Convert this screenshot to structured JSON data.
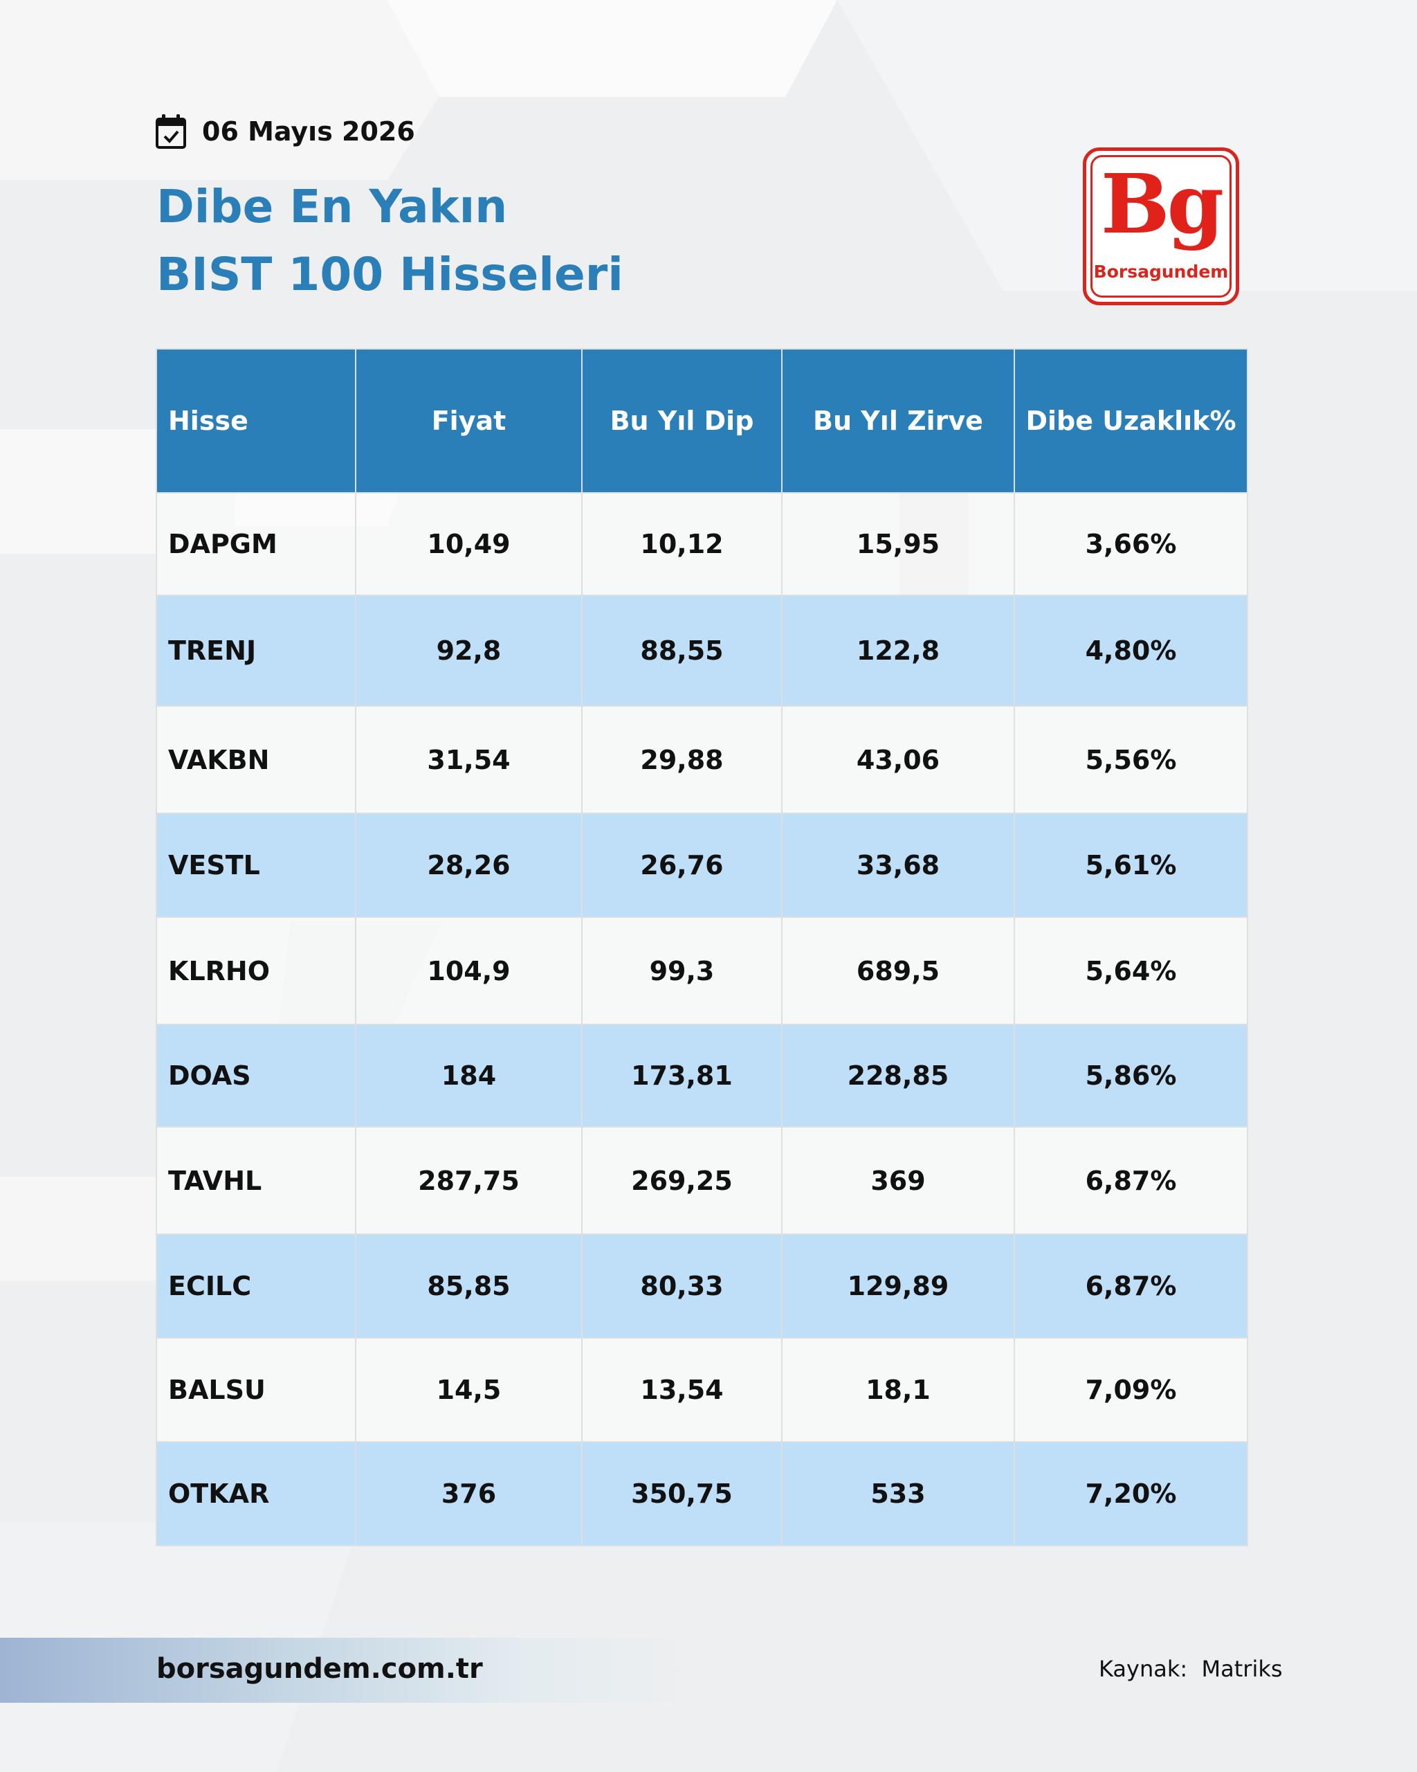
{
  "date": "06 Mayıs 2026",
  "title": {
    "line1": "Dibe En Yakın",
    "line2": "BIST 100 Hisseleri"
  },
  "logo": {
    "mark": "Bg",
    "name": "Borsagundem"
  },
  "table": {
    "headers": [
      "Hisse",
      "Fiyat",
      "Bu Yıl Dip",
      "Bu Yıl Zirve",
      "Dibe Uzaklık%"
    ],
    "rows": [
      [
        "DAPGM",
        "10,49",
        "10,12",
        "15,95",
        "3,66%"
      ],
      [
        "TRENJ",
        "92,8",
        "88,55",
        "122,8",
        "4,80%"
      ],
      [
        "VAKBN",
        "31,54",
        "29,88",
        "43,06",
        "5,56%"
      ],
      [
        "VESTL",
        "28,26",
        "26,76",
        "33,68",
        "5,61%"
      ],
      [
        "KLRHO",
        "104,9",
        "99,3",
        "689,5",
        "5,64%"
      ],
      [
        "DOAS",
        "184",
        "173,81",
        "228,85",
        "5,86%"
      ],
      [
        "TAVHL",
        "287,75",
        "269,25",
        "369",
        "6,87%"
      ],
      [
        "ECILC",
        "85,85",
        "80,33",
        "129,89",
        "6,87%"
      ],
      [
        "BALSU",
        "14,5",
        "13,54",
        "18,1",
        "7,09%"
      ],
      [
        "OTKAR",
        "376",
        "350,75",
        "533",
        "7,20%"
      ]
    ]
  },
  "footer": {
    "website": "borsagundem.com.tr",
    "source": "Kaynak:  Matriks"
  },
  "colors": {
    "accent": "#2a7fb8",
    "row_alt": "#bedff7",
    "brand_red": "#e0221b"
  }
}
